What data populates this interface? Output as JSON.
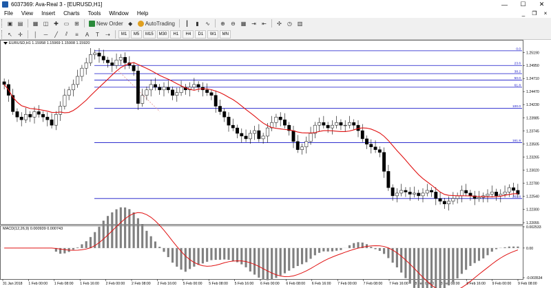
{
  "window": {
    "title": "6037369: Ava-Real 3 - [EURUSD,H1]",
    "controls": {
      "minimize": "—",
      "maximize": "☐",
      "close": "✕"
    }
  },
  "menu": {
    "items": [
      "File",
      "View",
      "Insert",
      "Charts",
      "Tools",
      "Window",
      "Help"
    ],
    "mdi_controls": [
      "_",
      "❐",
      "×"
    ]
  },
  "toolbar": {
    "new_order": "New Order",
    "autotrading": "AutoTrading",
    "timeframes": [
      "M1",
      "M5",
      "M15",
      "M30",
      "H1",
      "H4",
      "D1",
      "W1",
      "MN"
    ]
  },
  "chart": {
    "title": "EURUSD,H1  1.15958 1.15969 1.15908 1.15920",
    "macd_label": "MACD(12,26,9) 0.000939 0.000743",
    "colors": {
      "candle": "#000000",
      "ma": "#e01010",
      "fib": "#1010c8",
      "grid": "#c8c8c8",
      "macd_hist": "#808080",
      "macd_signal": "#e01010",
      "trend": "#e08080"
    }
  },
  "chart_data": {
    "type": "candlestick",
    "symbol": "EURUSD",
    "timeframe": "H1",
    "y_ticks": [
      "1.25190",
      "1.24950",
      "1.24710",
      "1.24470",
      "1.24230",
      "1.23985",
      "1.23745",
      "1.23505",
      "1.23265",
      "1.23020",
      "1.22780",
      "1.22540",
      "1.22300",
      "1.22055"
    ],
    "ylim": [
      1.22055,
      1.2532
    ],
    "x_ticks": [
      "31 Jan 2018",
      "1 Feb 00:00",
      "1 Feb 08:00",
      "1 Feb 16:00",
      "2 Feb 00:00",
      "2 Feb 08:00",
      "2 Feb 16:00",
      "5 Feb 00:00",
      "5 Feb 08:00",
      "5 Feb 16:00",
      "6 Feb 00:00",
      "6 Feb 08:00",
      "6 Feb 16:00",
      "7 Feb 00:00",
      "7 Feb 08:00",
      "7 Feb 16:00",
      "8 Feb 00:00",
      "8 Feb 08:00",
      "8 Feb 16:00",
      "9 Feb 00:00",
      "9 Feb 08:00"
    ],
    "fibo_levels": [
      {
        "label": "0.0",
        "price": 1.2522
      },
      {
        "label": "23.6",
        "price": 1.2495
      },
      {
        "label": "38.2",
        "price": 1.248
      },
      {
        "label": "50.0",
        "price": 1.2468
      },
      {
        "label": "61.8",
        "price": 1.2455
      },
      {
        "label": "100.0",
        "price": 1.2416
      },
      {
        "label": "161.8",
        "price": 1.2353
      },
      {
        "label": "261.8",
        "price": 1.225
      }
    ],
    "close_prices": [
      1.246,
      1.244,
      1.241,
      1.24,
      1.2395,
      1.2405,
      1.24,
      1.241,
      1.2405,
      1.24,
      1.2395,
      1.2385,
      1.2405,
      1.242,
      1.244,
      1.245,
      1.246,
      1.2475,
      1.249,
      1.25,
      1.2515,
      1.2518,
      1.2512,
      1.2505,
      1.25,
      1.2495,
      1.2505,
      1.251,
      1.25,
      1.2495,
      1.2485,
      1.2425,
      1.244,
      1.245,
      1.246,
      1.2455,
      1.245,
      1.2455,
      1.245,
      1.244,
      1.2445,
      1.2455,
      1.245,
      1.2455,
      1.246,
      1.2455,
      1.245,
      1.2445,
      1.244,
      1.242,
      1.241,
      1.24,
      1.2385,
      1.238,
      1.237,
      1.2365,
      1.236,
      1.237,
      1.2375,
      1.236,
      1.2365,
      1.238,
      1.239,
      1.24,
      1.2395,
      1.2385,
      1.2375,
      1.2355,
      1.234,
      1.2345,
      1.2355,
      1.237,
      1.2385,
      1.239,
      1.2385,
      1.238,
      1.2385,
      1.239,
      1.2385,
      1.2385,
      1.239,
      1.2385,
      1.2375,
      1.236,
      1.235,
      1.2345,
      1.234,
      1.2335,
      1.23,
      1.227,
      1.2255,
      1.226,
      1.2265,
      1.2262,
      1.2258,
      1.226,
      1.2255,
      1.226,
      1.2265,
      1.2262,
      1.225,
      1.2245,
      1.224,
      1.2245,
      1.225,
      1.2255,
      1.2265,
      1.226,
      1.2255,
      1.225,
      1.2252,
      1.2255,
      1.2258,
      1.2262,
      1.2255,
      1.2258,
      1.2262,
      1.227,
      1.2265,
      1.2258
    ],
    "macd_ticks": [
      "0.002533",
      "0.00",
      "-0.003534"
    ],
    "macd_ylim": [
      -0.003534,
      0.002533
    ]
  }
}
